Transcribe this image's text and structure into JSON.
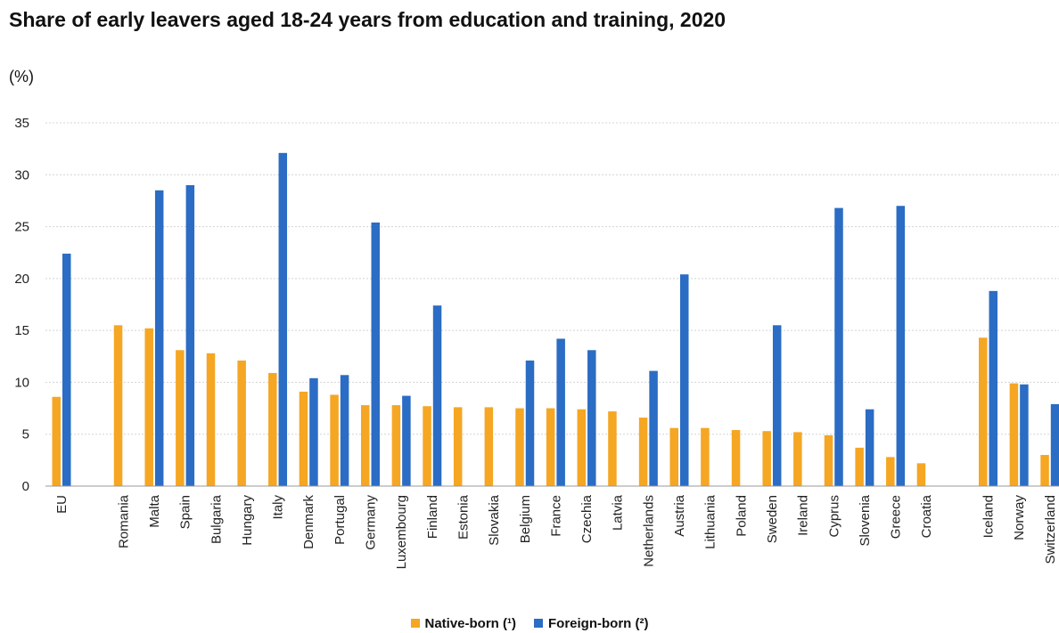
{
  "chart_data": {
    "type": "bar",
    "title": "Share of early leavers aged 18-24 years from education and training, 2020",
    "unit": "(%)",
    "ylim": [
      0,
      35
    ],
    "yticks": [
      0,
      5,
      10,
      15,
      20,
      25,
      30,
      35
    ],
    "grid": true,
    "legend_position": "bottom",
    "colors": {
      "native": "#f5a623",
      "foreign": "#2b6cc4"
    },
    "categories": [
      "EU",
      "Romania",
      "Malta",
      "Spain",
      "Bulgaria",
      "Hungary",
      "Italy",
      "Denmark",
      "Portugal",
      "Germany",
      "Luxembourg",
      "Finland",
      "Estonia",
      "Slovakia",
      "Belgium",
      "France",
      "Czechia",
      "Latvia",
      "Netherlands",
      "Austria",
      "Lithuania",
      "Poland",
      "Sweden",
      "Ireland",
      "Cyprus",
      "Slovenia",
      "Greece",
      "Croatia",
      "Iceland",
      "Norway",
      "Switzerland"
    ],
    "series": [
      {
        "name": "Native-born (¹)",
        "values": [
          8.6,
          15.5,
          15.2,
          13.1,
          12.8,
          12.1,
          10.9,
          9.1,
          8.8,
          7.8,
          7.8,
          7.7,
          7.6,
          7.6,
          7.5,
          7.5,
          7.4,
          7.2,
          6.6,
          5.6,
          5.6,
          5.4,
          5.3,
          5.2,
          4.9,
          3.7,
          2.8,
          2.2,
          14.3,
          9.9,
          3.0
        ]
      },
      {
        "name": "Foreign-born (²)",
        "values": [
          22.4,
          null,
          28.5,
          29.0,
          null,
          null,
          32.1,
          10.4,
          10.7,
          25.4,
          8.7,
          17.4,
          null,
          null,
          12.1,
          14.2,
          13.1,
          null,
          11.1,
          20.4,
          null,
          null,
          15.5,
          null,
          26.8,
          7.4,
          27.0,
          null,
          18.8,
          9.8,
          7.9
        ]
      }
    ]
  }
}
